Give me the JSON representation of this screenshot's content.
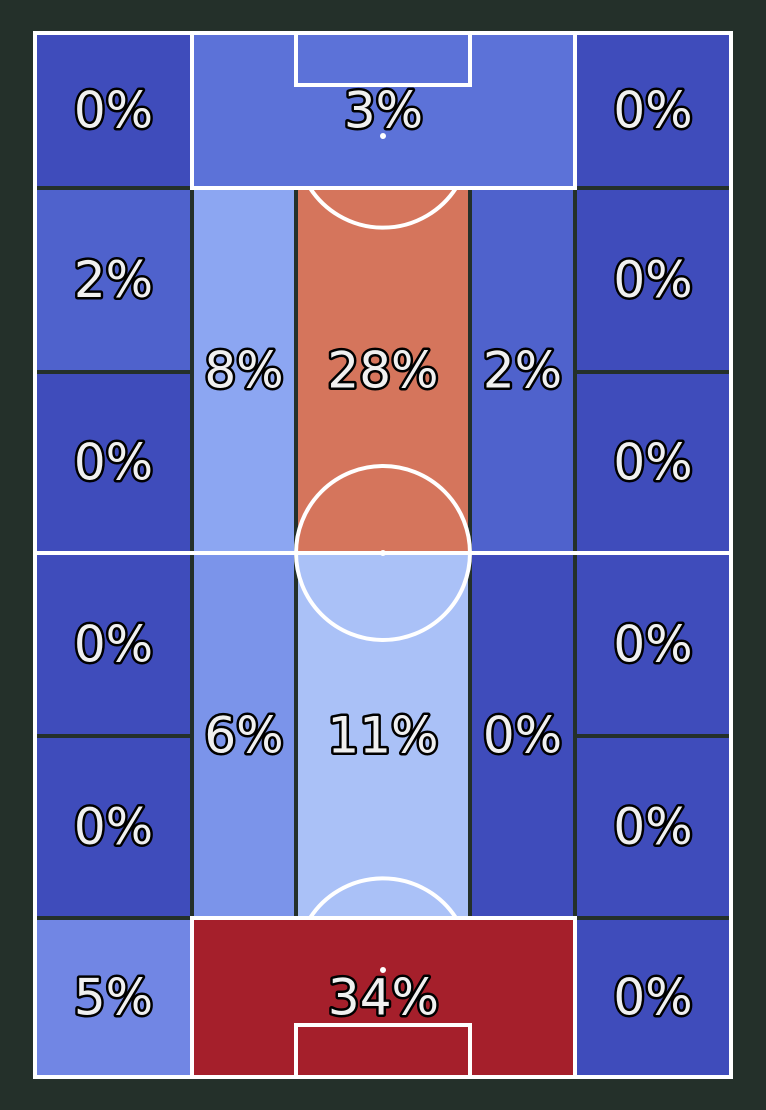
{
  "chart_data": {
    "type": "heatmap",
    "subject": "football pitch zone heatmap",
    "orientation": "vertical",
    "colors": {
      "background": "#24302a",
      "zone_divider": "#24302a",
      "pitch_lines": "#ffffff",
      "label_fill": "#f0f0f0",
      "label_outline": "#000000"
    },
    "zones": [
      {
        "id": "top-left",
        "label": "0%",
        "value": 0,
        "color": "#3f4cbb"
      },
      {
        "id": "top-box",
        "label": "3%",
        "value": 3,
        "color": "#5c72d8"
      },
      {
        "id": "top-right",
        "label": "0%",
        "value": 0,
        "color": "#3f4cbb"
      },
      {
        "id": "upper-left-outer-1",
        "label": "2%",
        "value": 2,
        "color": "#4f62cc"
      },
      {
        "id": "upper-left-outer-2",
        "label": "0%",
        "value": 0,
        "color": "#3f4cbb"
      },
      {
        "id": "upper-left-inner",
        "label": "8%",
        "value": 8,
        "color": "#8ca6f2"
      },
      {
        "id": "upper-center",
        "label": "28%",
        "value": 28,
        "color": "#d5755c"
      },
      {
        "id": "upper-right-inner",
        "label": "2%",
        "value": 2,
        "color": "#4f62cc"
      },
      {
        "id": "upper-right-outer-1",
        "label": "0%",
        "value": 0,
        "color": "#3f4cbb"
      },
      {
        "id": "upper-right-outer-2",
        "label": "0%",
        "value": 0,
        "color": "#3f4cbb"
      },
      {
        "id": "lower-left-outer-1",
        "label": "0%",
        "value": 0,
        "color": "#3f4cbb"
      },
      {
        "id": "lower-left-outer-2",
        "label": "0%",
        "value": 0,
        "color": "#3f4cbb"
      },
      {
        "id": "lower-left-inner",
        "label": "6%",
        "value": 6,
        "color": "#7b94ea"
      },
      {
        "id": "lower-center",
        "label": "11%",
        "value": 11,
        "color": "#aac1f7"
      },
      {
        "id": "lower-right-inner",
        "label": "0%",
        "value": 0,
        "color": "#3f4cbb"
      },
      {
        "id": "lower-right-outer-1",
        "label": "0%",
        "value": 0,
        "color": "#3f4cbb"
      },
      {
        "id": "lower-right-outer-2",
        "label": "0%",
        "value": 0,
        "color": "#3f4cbb"
      },
      {
        "id": "bottom-left",
        "label": "5%",
        "value": 5,
        "color": "#7186e4"
      },
      {
        "id": "bottom-box",
        "label": "34%",
        "value": 34,
        "color": "#a51f2b"
      },
      {
        "id": "bottom-right",
        "label": "0%",
        "value": 0,
        "color": "#3f4cbb"
      }
    ]
  }
}
